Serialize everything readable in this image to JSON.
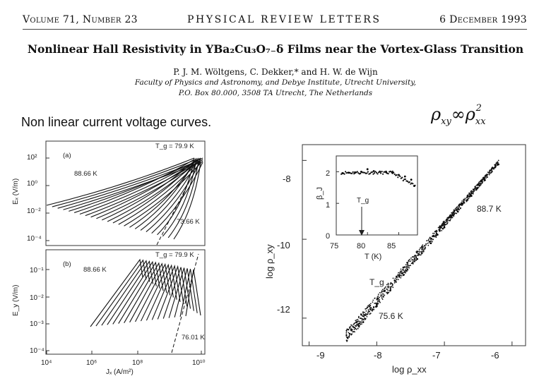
{
  "header": {
    "volume": "Volume 71, Number 23",
    "journal": "PHYSICAL REVIEW LETTERS",
    "date": "6 December 1993"
  },
  "paper": {
    "title_pre": "Nonlinear Hall Resistivity in ",
    "title_formula": "YBa₂Cu₃O₇₋δ",
    "title_post": " Films near the Vortex-Glass Transition",
    "authors": "P. J. M. Wöltgens, C. Dekker,* and H. W. de Wijn",
    "affiliation_1": "Faculty of Physics and Astronomy, and Debye Institute, Utrecht University,",
    "affiliation_2": "P.O. Box 80.000, 3508 TA Utrecht, The Netherlands"
  },
  "slide": {
    "caption": "Non linear current voltage curves.",
    "formula_rho": "ρ",
    "formula_xy": "xy",
    "formula_prop": "∞",
    "formula_rho2": "ρ",
    "formula_xx": "xx",
    "formula_exp": "2"
  },
  "chart_data": [
    {
      "type": "line",
      "panel": "(a)",
      "title": "",
      "xlabel": "",
      "ylabel": "Eₓ (V/m)",
      "yscale": "log",
      "ylim": [
        5e-05,
        300
      ],
      "y_ticks": [
        "10²",
        "10⁰",
        "10⁻²",
        "10⁻⁴"
      ],
      "annotations": [
        "T_g = 79.9 K",
        "88.66 K",
        "73.66 K"
      ],
      "series": [
        {
          "values": [
            [
              10000.0,
              0.0007
            ],
            [
              5000000000.0,
              100
            ]
          ]
        },
        {
          "values": [
            [
              600000.0,
              0.00013
            ],
            [
              6000000000.0,
              100
            ]
          ]
        },
        {
          "values": [
            [
              5000000.0,
              8e-05
            ],
            [
              7000000000.0,
              100
            ]
          ]
        },
        {
          "values": [
            [
              40000000.0,
              6e-05
            ],
            [
              8000000000.0,
              100
            ]
          ]
        },
        {
          "values": [
            [
              100000000.0,
              0.0001
            ],
            [
              9000000000.0,
              100
            ]
          ]
        }
      ]
    },
    {
      "type": "line",
      "panel": "(b)",
      "title": "",
      "xlabel": "Jₓ (A/m²)",
      "ylabel": "E_y (V/m)",
      "xscale": "log",
      "yscale": "log",
      "xlim": [
        10000.0,
        10000000000.0
      ],
      "ylim": [
        0.0001,
        1
      ],
      "x_ticks": [
        "10⁴",
        "10⁶",
        "10⁸",
        "10¹⁰"
      ],
      "y_ticks": [
        "10⁻¹",
        "10⁻²",
        "10⁻³",
        "10⁻⁴"
      ],
      "annotations": [
        "T_g = 79.9 K",
        "88.66 K",
        "76.01 K"
      ]
    },
    {
      "type": "scatter",
      "title": "",
      "xlabel": "log ρ_xx",
      "ylabel": "log ρ_xy",
      "xlim": [
        -9.1,
        -5.8
      ],
      "ylim": [
        -12.7,
        -7.6
      ],
      "x_ticks": [
        "-9",
        "-8",
        "-7",
        "-6"
      ],
      "y_ticks": [
        "-8",
        "-10",
        "-12"
      ],
      "annotations": [
        "88.7 K",
        "T_g",
        "75.6 K"
      ],
      "x": [
        -8.4,
        -8.2,
        -8.0,
        -7.8,
        -7.6,
        -7.4,
        -7.2,
        -7.0,
        -6.8,
        -6.6,
        -6.4,
        -6.2
      ],
      "y": [
        -12.4,
        -12.1,
        -11.7,
        -11.3,
        -10.9,
        -10.5,
        -10.1,
        -9.7,
        -9.3,
        -8.9,
        -8.5,
        -8.1
      ],
      "inset": {
        "type": "scatter",
        "xlabel": "T (K)",
        "ylabel": "β_J",
        "xlim": [
          75,
          88
        ],
        "ylim": [
          0,
          2.5
        ],
        "x_ticks": [
          "75",
          "80",
          "85"
        ],
        "y_ticks": [
          "0",
          "1",
          "2"
        ],
        "annotation": "T_g",
        "x": [
          76,
          77,
          78,
          79,
          80,
          81,
          82,
          83,
          84,
          85,
          86,
          87,
          87.5
        ],
        "y": [
          1.95,
          1.97,
          1.98,
          2.0,
          2.08,
          2.02,
          2.0,
          1.98,
          1.96,
          1.9,
          1.85,
          1.75,
          1.55
        ]
      }
    }
  ]
}
